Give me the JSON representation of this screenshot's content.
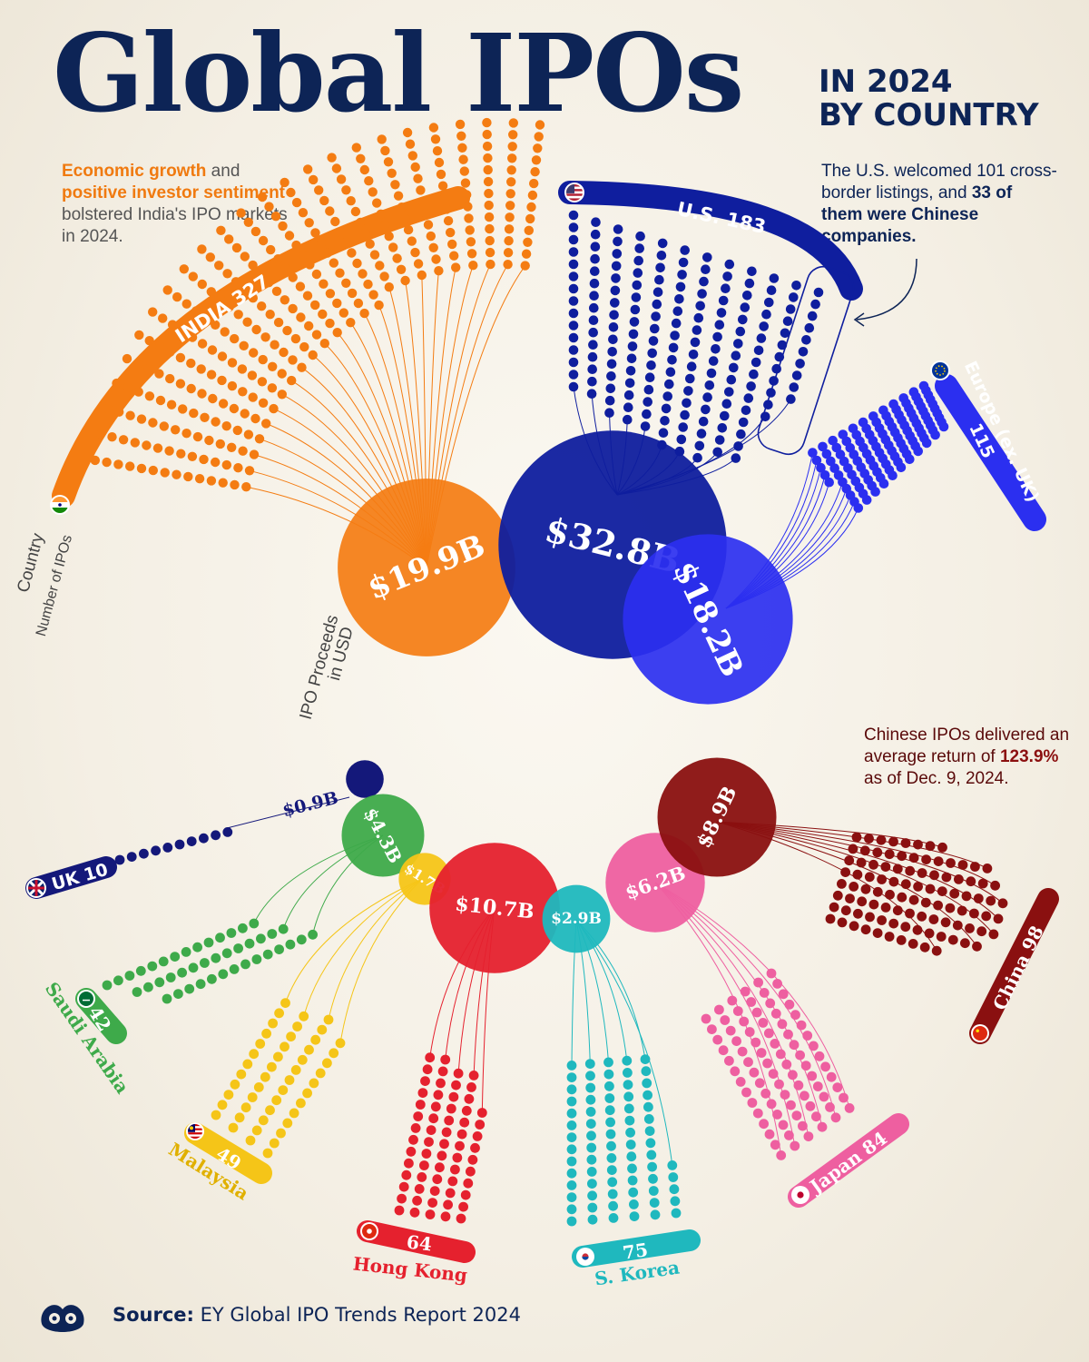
{
  "title": {
    "main": "Global IPOs",
    "line1": "IN 2024",
    "line2": "BY COUNTRY"
  },
  "notes": {
    "india": [
      {
        "text": "Economic growth",
        "bold": true
      },
      {
        "text": " and ",
        "bold": false
      },
      {
        "text": "positive investor sentiment",
        "bold": true
      },
      {
        "text": " bolstered India's IPO markets in 2024.",
        "bold": false
      }
    ],
    "us": [
      {
        "text": "The U.S. welcomed 101 cross-border listings, and ",
        "bold": false
      },
      {
        "text": "33 of them were Chinese companies.",
        "bold": true
      }
    ],
    "china": [
      {
        "text": "Chinese IPOs delivered an average return of ",
        "bold": false
      },
      {
        "text": "123.9%",
        "bold": true
      },
      {
        "text": " as of Dec. 9, 2024.",
        "bold": false
      }
    ]
  },
  "legend": {
    "country": "Country",
    "number": "Number of IPOs",
    "proceeds_line1": "IPO Proceeds",
    "proceeds_line2": "in USD"
  },
  "source": {
    "label": "Source:",
    "text": "EY Global IPO Trends Report 2024"
  },
  "colors": {
    "india": "#f47c12",
    "us": "#0f1e9e",
    "europe": "#2b2ff0",
    "uk": "#14187a",
    "saudi": "#3eaa4a",
    "malaysia": "#f5c518",
    "hongkong": "#e5212e",
    "skorea": "#1fb8be",
    "japan": "#ee5fa0",
    "china": "#8a1010",
    "navy": "#0d2456"
  },
  "chart_data": {
    "type": "bubble-dot-matrix",
    "series": [
      {
        "name": "India",
        "label": "INDIA 327",
        "ipos": 327,
        "proceeds_usd_b": 19.9,
        "proceeds_label": "$19.9B",
        "color_key": "india",
        "flag": "flag-india-icon"
      },
      {
        "name": "U.S.",
        "label": "U.S. 183",
        "ipos": 183,
        "proceeds_usd_b": 32.8,
        "proceeds_label": "$32.8B",
        "color_key": "us",
        "flag": "flag-us-icon",
        "cross_border_listings": 101,
        "chinese_companies": 33
      },
      {
        "name": "Europe (ex. UK)",
        "label_line1": "Europe (ex. UK)",
        "label_line2": "115",
        "ipos": 115,
        "proceeds_usd_b": 18.2,
        "proceeds_label": "$18.2B",
        "color_key": "europe",
        "flag": "flag-eu-icon"
      },
      {
        "name": "UK",
        "label": "UK 10",
        "ipos": 10,
        "proceeds_usd_b": 0.9,
        "proceeds_label": "$0.9B",
        "color_key": "uk",
        "flag": "flag-uk-icon"
      },
      {
        "name": "Saudi Arabia",
        "label_num": "42",
        "label_name": "Saudi Arabia",
        "ipos": 42,
        "proceeds_usd_b": 4.3,
        "proceeds_label": "$4.3B",
        "color_key": "saudi",
        "flag": "flag-saudi-icon"
      },
      {
        "name": "Malaysia",
        "label_num": "49",
        "label_name": "Malaysia",
        "ipos": 49,
        "proceeds_usd_b": 1.7,
        "proceeds_label": "$1.7B",
        "color_key": "malaysia",
        "flag": "flag-malaysia-icon"
      },
      {
        "name": "Hong Kong",
        "label_num": "64",
        "label_name": "Hong Kong",
        "ipos": 64,
        "proceeds_usd_b": 10.7,
        "proceeds_label": "$10.7B",
        "color_key": "hongkong",
        "flag": "flag-hongkong-icon"
      },
      {
        "name": "S. Korea",
        "label_num": "75",
        "label_name": "S. Korea",
        "ipos": 75,
        "proceeds_usd_b": 2.9,
        "proceeds_label": "$2.9B",
        "color_key": "skorea",
        "flag": "flag-skorea-icon"
      },
      {
        "name": "Japan",
        "label": "Japan 84",
        "ipos": 84,
        "proceeds_usd_b": 6.2,
        "proceeds_label": "$6.2B",
        "color_key": "japan",
        "flag": "flag-japan-icon"
      },
      {
        "name": "China",
        "label": "China 98",
        "ipos": 98,
        "proceeds_usd_b": 8.9,
        "proceeds_label": "$8.9B",
        "color_key": "china",
        "flag": "flag-china-icon",
        "avg_return_pct": 123.9,
        "return_as_of": "Dec. 9, 2024"
      }
    ]
  }
}
